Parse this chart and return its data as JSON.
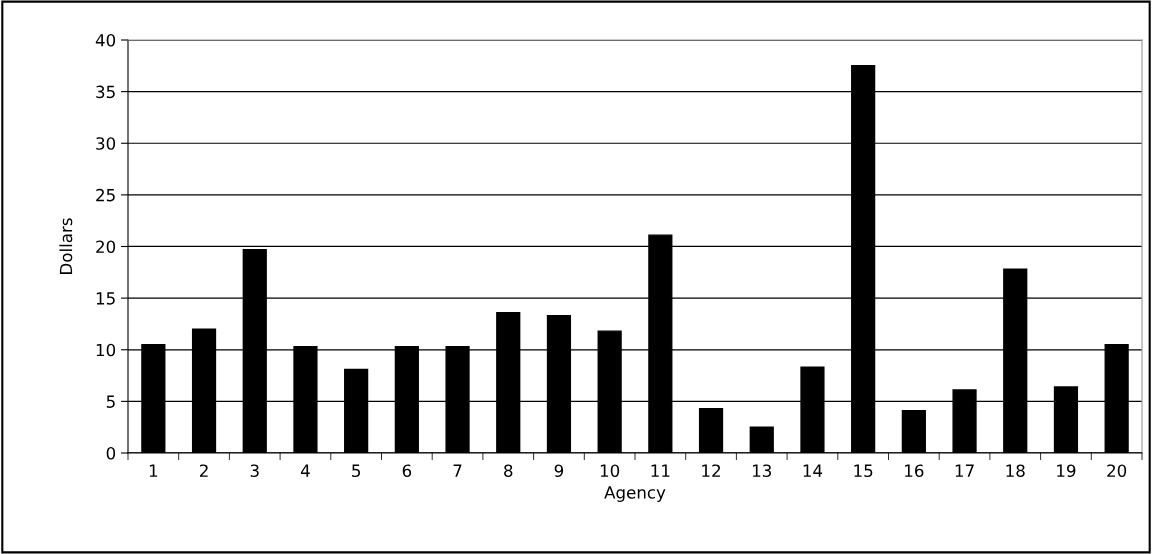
{
  "chart_data": {
    "type": "bar",
    "xlabel": "Agency",
    "ylabel": "Dollars",
    "categories": [
      "1",
      "2",
      "3",
      "4",
      "5",
      "6",
      "7",
      "8",
      "9",
      "10",
      "11",
      "12",
      "13",
      "14",
      "15",
      "16",
      "17",
      "18",
      "19",
      "20"
    ],
    "values": [
      10.5,
      12.0,
      19.7,
      10.3,
      8.1,
      10.3,
      10.3,
      13.6,
      13.3,
      11.8,
      21.1,
      4.3,
      2.5,
      8.3,
      37.5,
      4.1,
      6.1,
      17.8,
      6.4,
      10.5
    ],
    "color": "#000000",
    "ylim": [
      0,
      40
    ],
    "yticks": [
      0,
      5,
      10,
      15,
      20,
      25,
      30,
      35,
      40
    ],
    "grid": "y",
    "legend": false
  }
}
